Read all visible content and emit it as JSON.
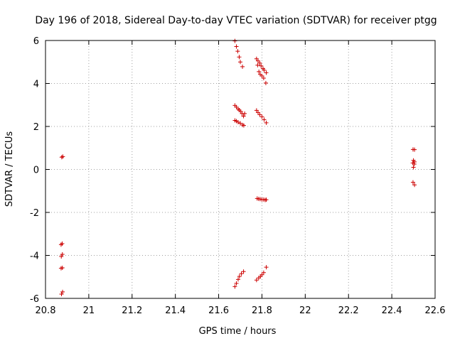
{
  "chart_data": {
    "type": "scatter",
    "title": "Day 196 of 2018, Sidereal Day-to-day VTEC variation (SDTVAR) for receiver ptgg",
    "xlabel": "GPS time / hours",
    "ylabel": "SDTVAR / TECUs",
    "xlim": [
      20.8,
      22.6
    ],
    "ylim": [
      -6,
      6
    ],
    "xticks": [
      "20.8",
      "21",
      "21.2",
      "21.4",
      "21.6",
      "21.8",
      "22",
      "22.2",
      "22.4",
      "22.6"
    ],
    "yticks": [
      "-6",
      "-4",
      "-2",
      "0",
      "2",
      "4",
      "6"
    ],
    "grid": true,
    "marker": "+",
    "marker_color": "#cc0000",
    "series": [
      {
        "name": "SDTVAR",
        "points": [
          [
            20.875,
            0.57
          ],
          [
            20.88,
            0.6
          ],
          [
            20.872,
            -3.5
          ],
          [
            20.877,
            -3.45
          ],
          [
            20.873,
            -4.05
          ],
          [
            20.878,
            -3.95
          ],
          [
            20.872,
            -4.6
          ],
          [
            20.878,
            -4.58
          ],
          [
            20.874,
            -5.8
          ],
          [
            20.879,
            -5.7
          ],
          [
            21.675,
            5.98
          ],
          [
            21.682,
            5.72
          ],
          [
            21.688,
            5.5
          ],
          [
            21.695,
            5.23
          ],
          [
            21.7,
            5.0
          ],
          [
            21.71,
            4.78
          ],
          [
            21.675,
            2.98
          ],
          [
            21.682,
            2.9
          ],
          [
            21.69,
            2.82
          ],
          [
            21.695,
            2.76
          ],
          [
            21.702,
            2.7
          ],
          [
            21.708,
            2.6
          ],
          [
            21.715,
            2.48
          ],
          [
            21.72,
            2.6
          ],
          [
            21.675,
            2.28
          ],
          [
            21.682,
            2.25
          ],
          [
            21.69,
            2.2
          ],
          [
            21.7,
            2.15
          ],
          [
            21.71,
            2.07
          ],
          [
            21.716,
            2.05
          ],
          [
            21.675,
            -5.45
          ],
          [
            21.682,
            -5.3
          ],
          [
            21.69,
            -5.12
          ],
          [
            21.696,
            -4.98
          ],
          [
            21.705,
            -4.85
          ],
          [
            21.715,
            -4.75
          ],
          [
            21.775,
            5.15
          ],
          [
            21.782,
            5.05
          ],
          [
            21.79,
            4.95
          ],
          [
            21.796,
            4.82
          ],
          [
            21.805,
            4.7
          ],
          [
            21.81,
            4.62
          ],
          [
            21.82,
            4.5
          ],
          [
            21.78,
            4.85
          ],
          [
            21.786,
            4.55
          ],
          [
            21.792,
            4.42
          ],
          [
            21.8,
            4.35
          ],
          [
            21.808,
            4.25
          ],
          [
            21.818,
            4.02
          ],
          [
            21.775,
            2.75
          ],
          [
            21.782,
            2.65
          ],
          [
            21.79,
            2.55
          ],
          [
            21.8,
            2.45
          ],
          [
            21.81,
            2.32
          ],
          [
            21.82,
            2.17
          ],
          [
            21.778,
            -1.35
          ],
          [
            21.785,
            -1.37
          ],
          [
            21.792,
            -1.38
          ],
          [
            21.8,
            -1.4
          ],
          [
            21.808,
            -1.4
          ],
          [
            21.815,
            -1.42
          ],
          [
            21.82,
            -1.41
          ],
          [
            21.775,
            -5.15
          ],
          [
            21.785,
            -5.05
          ],
          [
            21.793,
            -4.98
          ],
          [
            21.8,
            -4.9
          ],
          [
            21.808,
            -4.8
          ],
          [
            21.82,
            -4.55
          ],
          [
            22.498,
            0.93
          ],
          [
            22.505,
            0.92
          ],
          [
            22.5,
            0.42
          ],
          [
            22.505,
            0.35
          ],
          [
            22.497,
            0.3
          ],
          [
            22.504,
            0.25
          ],
          [
            22.5,
            0.1
          ],
          [
            22.498,
            -0.6
          ],
          [
            22.505,
            -0.72
          ]
        ]
      }
    ]
  }
}
